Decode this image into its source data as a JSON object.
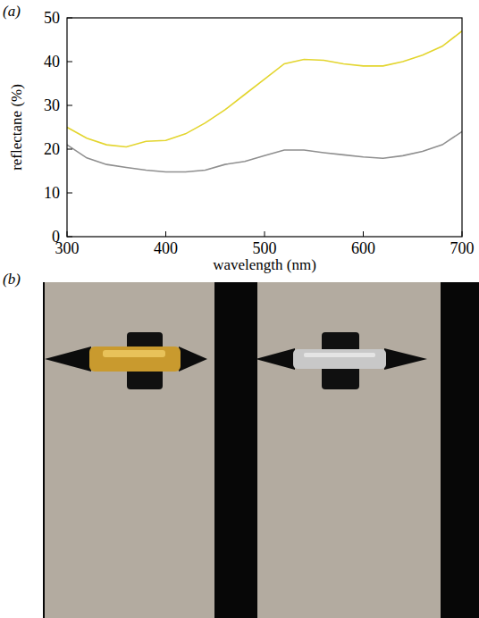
{
  "chart_data": {
    "type": "line",
    "panel_label": "(a)",
    "x_label": "wavelength (nm)",
    "y_label": "reflectane (%)",
    "x": [
      300,
      320,
      340,
      360,
      380,
      400,
      420,
      440,
      460,
      480,
      500,
      520,
      540,
      560,
      580,
      600,
      620,
      640,
      660,
      680,
      700
    ],
    "series": [
      {
        "color": "#e3d52e",
        "values": [
          25,
          22.5,
          21,
          20.5,
          21.8,
          22,
          23.5,
          26,
          29,
          32.5,
          36,
          39.5,
          40.5,
          40.3,
          39.5,
          39,
          39,
          40,
          41.5,
          43.5,
          47
        ]
      },
      {
        "color": "#8f8f8f",
        "values": [
          21,
          18,
          16.5,
          15.8,
          15.2,
          14.8,
          14.8,
          15.2,
          16.5,
          17.2,
          18.5,
          19.8,
          19.8,
          19.2,
          18.7,
          18.2,
          17.9,
          18.5,
          19.5,
          21,
          24
        ]
      }
    ],
    "xlim": [
      300,
      700
    ],
    "xticks": [
      300,
      400,
      500,
      600,
      700
    ],
    "ylim": [
      0,
      50
    ],
    "yticks": [
      0,
      10,
      20,
      30,
      40,
      50
    ],
    "grid": false
  },
  "photo": {
    "panel_label": "(b)"
  }
}
